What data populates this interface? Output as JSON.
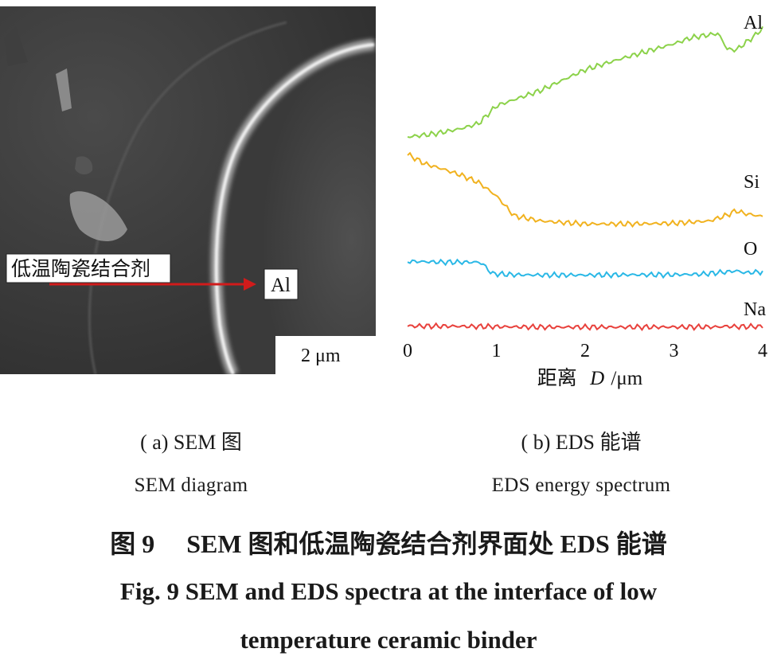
{
  "sem_panel": {
    "binder_label": "低温陶瓷结合剂",
    "al_label": "Al",
    "scale_bar": "2 μm"
  },
  "chart_data": {
    "type": "line",
    "xlabel_prefix": "距离",
    "xlabel_var": "D",
    "xlabel_unit": "/μm",
    "x_ticks": [
      "0",
      "1",
      "2",
      "3",
      "4"
    ],
    "xlim": [
      0,
      4
    ],
    "y_scale": "arbitrary (stacked, no y-axis)",
    "series": [
      {
        "name": "Al",
        "color": "#8cd24a",
        "x": [
          0,
          0.3,
          0.6,
          0.8,
          1.0,
          1.5,
          2.0,
          2.5,
          3.0,
          3.2,
          3.5,
          3.6,
          3.7,
          3.9,
          4.0
        ],
        "y": [
          0.0,
          0.03,
          0.08,
          0.13,
          0.3,
          0.45,
          0.65,
          0.78,
          0.9,
          0.96,
          1.0,
          0.85,
          0.84,
          0.97,
          1.05
        ]
      },
      {
        "name": "Si",
        "color": "#f1b21f",
        "x": [
          0,
          0.2,
          0.4,
          0.6,
          0.8,
          1.0,
          1.2,
          1.5,
          2.0,
          2.5,
          3.0,
          3.4,
          3.6,
          3.7,
          3.8,
          4.0
        ],
        "y": [
          0.98,
          0.85,
          0.78,
          0.7,
          0.6,
          0.42,
          0.15,
          0.08,
          0.04,
          0.04,
          0.05,
          0.08,
          0.16,
          0.22,
          0.18,
          0.14
        ]
      },
      {
        "name": "O",
        "color": "#2ab8e6",
        "x": [
          0,
          0.4,
          0.8,
          0.85,
          0.95,
          1.2,
          1.5,
          2.0,
          2.5,
          3.0,
          3.3,
          3.6,
          3.7,
          3.8,
          4.0
        ],
        "y": [
          0.55,
          0.52,
          0.52,
          0.45,
          0.12,
          0.08,
          0.07,
          0.07,
          0.08,
          0.08,
          0.1,
          0.18,
          0.22,
          0.15,
          0.18
        ]
      },
      {
        "name": "Na",
        "color": "#e8413c",
        "x": [
          0,
          0.5,
          1.0,
          1.5,
          2.0,
          2.5,
          3.0,
          3.5,
          3.6,
          3.7,
          4.0
        ],
        "y": [
          0.18,
          0.16,
          0.12,
          0.08,
          0.08,
          0.08,
          0.09,
          0.1,
          0.16,
          0.12,
          0.14
        ]
      }
    ]
  },
  "captions": {
    "a_zh": "( a) SEM 图",
    "a_en": "SEM diagram",
    "b_zh": "( b) EDS 能谱",
    "b_en": "EDS energy spectrum"
  },
  "figure": {
    "title_zh": "图 9　 SEM 图和低温陶瓷结合剂界面处 EDS 能谱",
    "title_en_line1": "Fig. 9 SEM and EDS spectra at the interface of low",
    "title_en_line2": "temperature ceramic binder"
  }
}
